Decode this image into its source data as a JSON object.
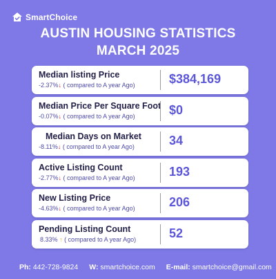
{
  "brand": {
    "name": "SmartChoice"
  },
  "title": {
    "line1": "AUSTIN HOUSING STATISTICS",
    "line2": "MARCH 2025"
  },
  "stats": [
    {
      "label": "Median listing Price",
      "change": "-2.37%",
      "direction": "down",
      "note": "( compared to A year Ago)",
      "value": "$384,169"
    },
    {
      "label": "Median Price Per Square Foot",
      "change": "-0.07%",
      "direction": "down",
      "note": "( compared to A year Ago)",
      "value": "$0"
    },
    {
      "label": "Median Days on Market",
      "change": "-8.11%",
      "direction": "down",
      "note": "( compared to A year Ago)",
      "value": "34"
    },
    {
      "label": "Active Listing Count",
      "change": "-2.77%",
      "direction": "down",
      "note": "( compared to A year Ago)",
      "value": "193"
    },
    {
      "label": "New Listing Price",
      "change": "-4.63%",
      "direction": "down",
      "note": "( compared to A year Ago)",
      "value": "206"
    },
    {
      "label": "Pending Listing Count",
      "change": "8.33%",
      "direction": "up",
      "note": "( compared to A year Ago)",
      "value": "52"
    }
  ],
  "arrows": {
    "down": "↓",
    "up": "↑"
  },
  "footer": {
    "phone_label": "Ph:",
    "phone": "442-728-9824",
    "web_label": "W:",
    "web": "smartchoice.com",
    "email_label": "E-mail:",
    "email": "smartchoice@gmail.com"
  },
  "colors": {
    "background": "#7e79e6",
    "value": "#5c57d9",
    "down_arrow": "#e0283a",
    "up_arrow": "#e0b021"
  }
}
